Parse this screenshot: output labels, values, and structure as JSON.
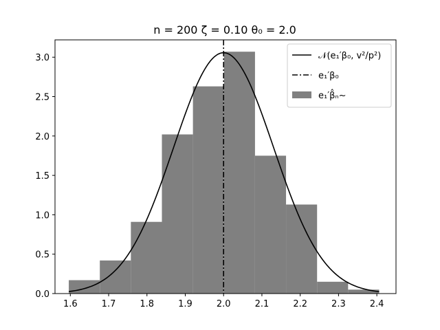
{
  "chart_data": {
    "type": "histogram",
    "title": "n = 200 ζ = 0.10 θ₀ = 2.0",
    "xlabel": "",
    "ylabel": "",
    "xlim": [
      1.56,
      2.45
    ],
    "ylim": [
      0,
      3.22
    ],
    "xticks": [
      1.6,
      1.7,
      1.8,
      1.9,
      2.0,
      2.1,
      2.2,
      2.3,
      2.4
    ],
    "xtick_labels": [
      "1.6",
      "1.7",
      "1.8",
      "1.9",
      "2.0",
      "2.1",
      "2.2",
      "2.3",
      "2.4"
    ],
    "yticks": [
      0.0,
      0.5,
      1.0,
      1.5,
      2.0,
      2.5,
      3.0
    ],
    "ytick_labels": [
      "0.0",
      "0.5",
      "1.0",
      "1.5",
      "2.0",
      "2.5",
      "3.0"
    ],
    "grid": false,
    "legend_position": "top-right",
    "histogram": {
      "name": "e₁′β̂ₙ~",
      "color": "#808080",
      "bin_edges": [
        1.596,
        1.677,
        1.758,
        1.839,
        1.92,
        2.001,
        2.082,
        2.163,
        2.244,
        2.325,
        2.406
      ],
      "densities": [
        0.17,
        0.42,
        0.91,
        2.02,
        2.63,
        3.07,
        1.75,
        1.13,
        0.15,
        0.05
      ]
    },
    "normal_curve": {
      "name": "𝒩(e₁′β₀, v²/p²)",
      "color": "#000000",
      "mean": 2.0,
      "sd": 0.1305,
      "x_range": [
        1.596,
        2.406
      ]
    },
    "vertical_line": {
      "name": "e₁′β₀",
      "x": 2.0,
      "color": "#000000",
      "style": "dashdot"
    }
  }
}
